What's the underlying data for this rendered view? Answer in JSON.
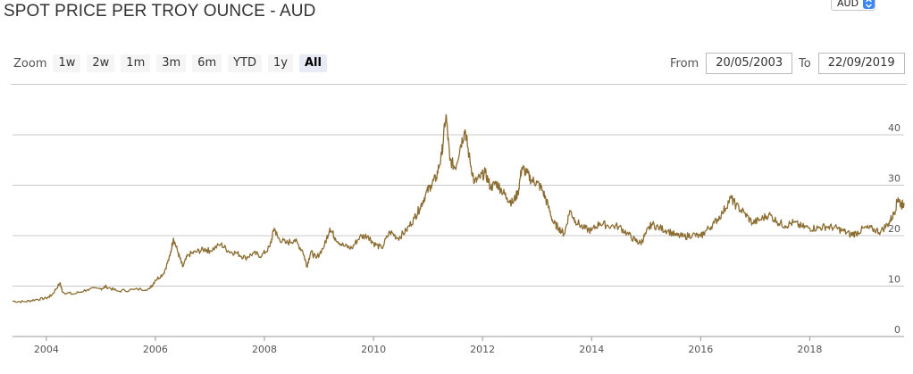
{
  "header": {
    "title": "SPOT PRICE PER TROY OUNCE - AUD",
    "currency_value": "AUD"
  },
  "zoom": {
    "label": "Zoom",
    "buttons": [
      "1w",
      "2w",
      "1m",
      "3m",
      "6m",
      "YTD",
      "1y",
      "All"
    ],
    "active": "All"
  },
  "range": {
    "from_label": "From",
    "from_value": "20/05/2003",
    "to_label": "To",
    "to_value": "22/09/2019"
  },
  "colors": {
    "line": "#8c6d31",
    "grid": "#c8c8c8",
    "accent": "#3b86f7"
  },
  "chart_data": {
    "type": "line",
    "title": "",
    "xlabel": "",
    "ylabel": "",
    "xlim": [
      2003.38,
      2019.73
    ],
    "ylim": [
      0,
      45
    ],
    "y_ticks": [
      0,
      10,
      20,
      30,
      40
    ],
    "x_ticks": [
      "2004",
      "2006",
      "2008",
      "2010",
      "2012",
      "2014",
      "2016",
      "2018"
    ],
    "grid": true,
    "series": [
      {
        "values": [
          [
            2003.38,
            7.0
          ],
          [
            2003.6,
            6.9
          ],
          [
            2003.8,
            7.3
          ],
          [
            2004.0,
            7.6
          ],
          [
            2004.1,
            8.2
          ],
          [
            2004.25,
            10.6
          ],
          [
            2004.3,
            8.8
          ],
          [
            2004.5,
            8.4
          ],
          [
            2004.75,
            9.3
          ],
          [
            2005.0,
            9.5
          ],
          [
            2005.1,
            9.9
          ],
          [
            2005.3,
            9.0
          ],
          [
            2005.6,
            9.3
          ],
          [
            2005.9,
            9.5
          ],
          [
            2006.0,
            11.2
          ],
          [
            2006.15,
            12.5
          ],
          [
            2006.27,
            16.0
          ],
          [
            2006.33,
            19.5
          ],
          [
            2006.42,
            16.5
          ],
          [
            2006.5,
            13.8
          ],
          [
            2006.6,
            16.2
          ],
          [
            2006.75,
            16.8
          ],
          [
            2006.9,
            17.3
          ],
          [
            2007.0,
            17.0
          ],
          [
            2007.2,
            18.3
          ],
          [
            2007.35,
            16.9
          ],
          [
            2007.5,
            16.5
          ],
          [
            2007.65,
            15.6
          ],
          [
            2007.8,
            16.5
          ],
          [
            2007.95,
            16.0
          ],
          [
            2008.1,
            17.8
          ],
          [
            2008.18,
            21.5
          ],
          [
            2008.25,
            19.5
          ],
          [
            2008.4,
            18.5
          ],
          [
            2008.55,
            19.2
          ],
          [
            2008.7,
            17.0
          ],
          [
            2008.78,
            14.0
          ],
          [
            2008.85,
            16.8
          ],
          [
            2008.95,
            15.5
          ],
          [
            2009.1,
            18.0
          ],
          [
            2009.2,
            21.5
          ],
          [
            2009.3,
            19.5
          ],
          [
            2009.45,
            18.0
          ],
          [
            2009.6,
            17.5
          ],
          [
            2009.75,
            19.8
          ],
          [
            2009.9,
            20.0
          ],
          [
            2010.0,
            18.5
          ],
          [
            2010.15,
            17.5
          ],
          [
            2010.3,
            20.8
          ],
          [
            2010.45,
            19.5
          ],
          [
            2010.6,
            21.0
          ],
          [
            2010.75,
            23.5
          ],
          [
            2010.85,
            25.5
          ],
          [
            2010.95,
            28.0
          ],
          [
            2011.05,
            30.0
          ],
          [
            2011.15,
            31.5
          ],
          [
            2011.25,
            36.0
          ],
          [
            2011.33,
            44.0
          ],
          [
            2011.4,
            35.0
          ],
          [
            2011.5,
            33.5
          ],
          [
            2011.6,
            38.0
          ],
          [
            2011.68,
            41.0
          ],
          [
            2011.75,
            36.0
          ],
          [
            2011.85,
            30.5
          ],
          [
            2011.95,
            31.5
          ],
          [
            2012.05,
            32.5
          ],
          [
            2012.15,
            29.5
          ],
          [
            2012.25,
            30.5
          ],
          [
            2012.35,
            29.0
          ],
          [
            2012.45,
            27.5
          ],
          [
            2012.55,
            26.5
          ],
          [
            2012.65,
            28.5
          ],
          [
            2012.72,
            33.5
          ],
          [
            2012.8,
            32.5
          ],
          [
            2012.9,
            31.0
          ],
          [
            2013.0,
            30.5
          ],
          [
            2013.1,
            29.0
          ],
          [
            2013.2,
            26.0
          ],
          [
            2013.3,
            22.5
          ],
          [
            2013.4,
            21.5
          ],
          [
            2013.5,
            20.3
          ],
          [
            2013.6,
            25.0
          ],
          [
            2013.7,
            23.0
          ],
          [
            2013.85,
            21.5
          ],
          [
            2014.0,
            21.0
          ],
          [
            2014.15,
            22.5
          ],
          [
            2014.3,
            22.0
          ],
          [
            2014.5,
            21.8
          ],
          [
            2014.65,
            20.5
          ],
          [
            2014.8,
            19.0
          ],
          [
            2014.9,
            18.5
          ],
          [
            2015.0,
            20.5
          ],
          [
            2015.1,
            22.3
          ],
          [
            2015.25,
            21.5
          ],
          [
            2015.4,
            21.0
          ],
          [
            2015.55,
            20.0
          ],
          [
            2015.7,
            19.8
          ],
          [
            2015.85,
            20.2
          ],
          [
            2016.0,
            19.8
          ],
          [
            2016.1,
            21.0
          ],
          [
            2016.25,
            22.5
          ],
          [
            2016.4,
            24.5
          ],
          [
            2016.55,
            27.5
          ],
          [
            2016.65,
            26.0
          ],
          [
            2016.8,
            24.5
          ],
          [
            2016.95,
            22.5
          ],
          [
            2017.1,
            23.2
          ],
          [
            2017.25,
            24.2
          ],
          [
            2017.4,
            22.8
          ],
          [
            2017.55,
            22.0
          ],
          [
            2017.7,
            22.6
          ],
          [
            2017.85,
            21.8
          ],
          [
            2018.0,
            21.5
          ],
          [
            2018.15,
            21.5
          ],
          [
            2018.3,
            21.8
          ],
          [
            2018.45,
            21.6
          ],
          [
            2018.6,
            21.0
          ],
          [
            2018.75,
            20.2
          ],
          [
            2018.85,
            20.5
          ],
          [
            2019.0,
            21.5
          ],
          [
            2019.15,
            21.3
          ],
          [
            2019.3,
            20.8
          ],
          [
            2019.45,
            22.5
          ],
          [
            2019.55,
            24.5
          ],
          [
            2019.62,
            27.5
          ],
          [
            2019.68,
            26.0
          ],
          [
            2019.73,
            26.5
          ]
        ]
      }
    ]
  }
}
